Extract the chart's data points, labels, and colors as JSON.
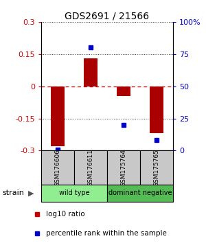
{
  "title": "GDS2691 / 21566",
  "samples": [
    "GSM176606",
    "GSM176611",
    "GSM175764",
    "GSM175765"
  ],
  "log10_ratio": [
    -0.28,
    0.13,
    -0.045,
    -0.22
  ],
  "percentile_rank": [
    1,
    80,
    20,
    8
  ],
  "groups": [
    {
      "label": "wild type",
      "color": "#90EE90",
      "samples": [
        0,
        1
      ]
    },
    {
      "label": "dominant negative",
      "color": "#55BB55",
      "samples": [
        2,
        3
      ]
    }
  ],
  "ylim": [
    -0.3,
    0.3
  ],
  "yticks_left": [
    -0.3,
    -0.15,
    0,
    0.15,
    0.3
  ],
  "yticks_right_pct": [
    0,
    25,
    50,
    75,
    100
  ],
  "bar_color": "#AA0000",
  "dot_color": "#0000CC",
  "hline0_color": "#CC0000",
  "dotted_color": "#333333",
  "bar_width": 0.4,
  "dot_size": 5,
  "legend_red_label": "log10 ratio",
  "legend_blue_label": "percentile rank within the sample",
  "strain_label": "strain"
}
